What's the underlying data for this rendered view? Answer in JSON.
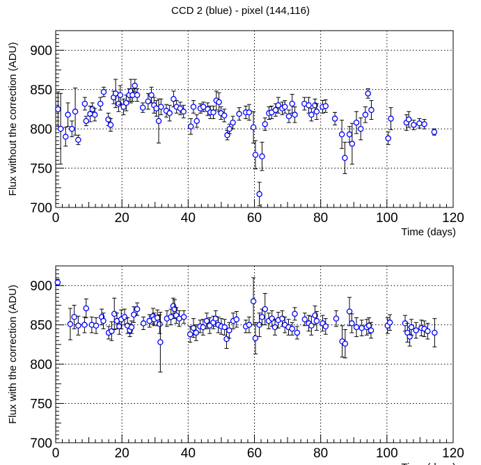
{
  "page": {
    "title": "CCD 2 (blue) -  pixel (144,116)"
  },
  "chart_data": [
    {
      "type": "scatter",
      "xlabel": "Time (days)",
      "ylabel": "Flux without the correction (ADU)",
      "xlim": [
        0,
        120
      ],
      "ylim": [
        700,
        925
      ],
      "x_ticks": [
        "0",
        "20",
        "40",
        "60",
        "80",
        "100",
        "120"
      ],
      "y_ticks": [
        "700",
        "750",
        "800",
        "850",
        "900"
      ],
      "grid": true,
      "marker": "open-circle",
      "color": "#0000ff",
      "errorbar_color": "#000000",
      "points": [
        [
          0.7,
          825,
          22
        ],
        [
          1.5,
          800,
          45
        ],
        [
          3.0,
          790,
          12
        ],
        [
          3.7,
          818,
          15
        ],
        [
          4.9,
          800,
          10
        ],
        [
          5.9,
          822,
          30
        ],
        [
          6.8,
          786,
          6
        ],
        [
          8.8,
          832,
          8
        ],
        [
          9.2,
          810,
          6
        ],
        [
          10.4,
          819,
          10
        ],
        [
          11.1,
          825,
          8
        ],
        [
          11.8,
          818,
          8
        ],
        [
          13.5,
          832,
          8
        ],
        [
          14.5,
          847,
          6
        ],
        [
          15.9,
          812,
          8
        ],
        [
          16.6,
          805,
          8
        ],
        [
          17.5,
          840,
          8
        ],
        [
          18.1,
          845,
          18
        ],
        [
          19.0,
          832,
          10
        ],
        [
          19.5,
          843,
          12
        ],
        [
          20.5,
          828,
          10
        ],
        [
          21.3,
          833,
          10
        ],
        [
          22.2,
          843,
          8
        ],
        [
          22.7,
          848,
          15
        ],
        [
          23.2,
          843,
          8
        ],
        [
          23.9,
          855,
          8
        ],
        [
          24.6,
          843,
          8
        ],
        [
          26.3,
          827,
          6
        ],
        [
          27.9,
          835,
          10
        ],
        [
          28.9,
          843,
          10
        ],
        [
          29.7,
          830,
          10
        ],
        [
          30.4,
          826,
          10
        ],
        [
          31.1,
          810,
          28
        ],
        [
          31.8,
          828,
          10
        ],
        [
          33.4,
          823,
          8
        ],
        [
          34.4,
          820,
          10
        ],
        [
          35.6,
          838,
          10
        ],
        [
          36.5,
          828,
          8
        ],
        [
          37.6,
          826,
          8
        ],
        [
          38.6,
          822,
          8
        ],
        [
          40.8,
          803,
          10
        ],
        [
          41.6,
          828,
          8
        ],
        [
          42.6,
          810,
          8
        ],
        [
          43.7,
          826,
          6
        ],
        [
          44.6,
          828,
          6
        ],
        [
          45.9,
          825,
          8
        ],
        [
          46.7,
          821,
          8
        ],
        [
          47.6,
          821,
          8
        ],
        [
          48.5,
          836,
          12
        ],
        [
          49.3,
          834,
          12
        ],
        [
          49.9,
          820,
          8
        ],
        [
          50.9,
          817,
          8
        ],
        [
          51.8,
          792,
          6
        ],
        [
          52.5,
          800,
          6
        ],
        [
          53.5,
          808,
          8
        ],
        [
          55.4,
          819,
          8
        ],
        [
          57.4,
          821,
          8
        ],
        [
          58.4,
          821,
          10
        ],
        [
          59.7,
          802,
          20
        ],
        [
          60.3,
          767,
          18
        ],
        [
          61.5,
          717,
          15
        ],
        [
          62.3,
          765,
          18
        ],
        [
          63.2,
          806,
          8
        ],
        [
          64.4,
          820,
          8
        ],
        [
          65.2,
          821,
          8
        ],
        [
          66.4,
          824,
          8
        ],
        [
          67.2,
          830,
          10
        ],
        [
          68.4,
          826,
          8
        ],
        [
          69.2,
          828,
          8
        ],
        [
          70.4,
          816,
          8
        ],
        [
          71.4,
          832,
          12
        ],
        [
          72.2,
          818,
          10
        ],
        [
          75.1,
          832,
          8
        ],
        [
          76.4,
          830,
          10
        ],
        [
          77.2,
          818,
          8
        ],
        [
          78.3,
          830,
          8
        ],
        [
          78.8,
          822,
          10
        ],
        [
          80.6,
          828,
          8
        ],
        [
          81.5,
          829,
          8
        ],
        [
          84.3,
          813,
          8
        ],
        [
          86.4,
          793,
          18
        ],
        [
          87.3,
          763,
          20
        ],
        [
          88.7,
          793,
          10
        ],
        [
          89.5,
          781,
          26
        ],
        [
          90.8,
          808,
          14
        ],
        [
          92.1,
          800,
          14
        ],
        [
          93.5,
          818,
          10
        ],
        [
          94.3,
          845,
          6
        ],
        [
          95.3,
          824,
          12
        ],
        [
          100.4,
          788,
          8
        ],
        [
          101.2,
          813,
          14
        ],
        [
          105.9,
          808,
          10
        ],
        [
          106.6,
          812,
          10
        ],
        [
          108.1,
          805,
          6
        ],
        [
          109.8,
          807,
          6
        ],
        [
          111.3,
          806,
          6
        ],
        [
          114.3,
          796,
          4
        ]
      ]
    },
    {
      "type": "scatter",
      "xlabel": "Time (days)",
      "ylabel": "Flux with the correction (ADU)",
      "xlim": [
        0,
        120
      ],
      "ylim": [
        700,
        925
      ],
      "x_ticks": [
        "0",
        "20",
        "40",
        "60",
        "80",
        "100",
        "120"
      ],
      "y_ticks": [
        "700",
        "750",
        "800",
        "850",
        "900"
      ],
      "grid": true,
      "marker": "open-circle",
      "color": "#0000ff",
      "errorbar_color": "#000000",
      "points": [
        [
          0.6,
          904,
          4
        ],
        [
          4.4,
          851,
          20
        ],
        [
          5.6,
          860,
          15
        ],
        [
          6.8,
          849,
          12
        ],
        [
          8.7,
          850,
          10
        ],
        [
          9.2,
          871,
          12
        ],
        [
          10.9,
          850,
          10
        ],
        [
          12.2,
          849,
          10
        ],
        [
          13.9,
          860,
          10
        ],
        [
          14.4,
          855,
          10
        ],
        [
          16.0,
          840,
          8
        ],
        [
          16.9,
          842,
          12
        ],
        [
          17.7,
          864,
          20
        ],
        [
          18.5,
          855,
          10
        ],
        [
          19.2,
          848,
          10
        ],
        [
          19.8,
          857,
          12
        ],
        [
          20.8,
          860,
          10
        ],
        [
          21.7,
          849,
          10
        ],
        [
          22.4,
          843,
          8
        ],
        [
          22.9,
          847,
          8
        ],
        [
          23.6,
          863,
          10
        ],
        [
          24.6,
          870,
          8
        ],
        [
          26.5,
          852,
          8
        ],
        [
          28.3,
          855,
          8
        ],
        [
          29.4,
          861,
          10
        ],
        [
          29.7,
          857,
          8
        ],
        [
          30.7,
          859,
          10
        ],
        [
          31.4,
          851,
          12
        ],
        [
          31.6,
          828,
          38
        ],
        [
          33.6,
          858,
          10
        ],
        [
          34.8,
          860,
          10
        ],
        [
          35.5,
          874,
          10
        ],
        [
          35.9,
          870,
          12
        ],
        [
          36.4,
          862,
          10
        ],
        [
          37.3,
          858,
          10
        ],
        [
          38.7,
          860,
          8
        ],
        [
          40.6,
          838,
          10
        ],
        [
          41.6,
          846,
          12
        ],
        [
          42.4,
          840,
          10
        ],
        [
          43.6,
          848,
          8
        ],
        [
          44.5,
          847,
          10
        ],
        [
          45.6,
          855,
          10
        ],
        [
          46.5,
          849,
          10
        ],
        [
          47.6,
          853,
          8
        ],
        [
          48.3,
          858,
          10
        ],
        [
          49.1,
          850,
          10
        ],
        [
          50.0,
          848,
          10
        ],
        [
          51.0,
          847,
          10
        ],
        [
          51.6,
          832,
          12
        ],
        [
          52.4,
          843,
          10
        ],
        [
          53.6,
          855,
          10
        ],
        [
          54.6,
          857,
          10
        ],
        [
          57.4,
          848,
          8
        ],
        [
          58.4,
          850,
          10
        ],
        [
          59.7,
          880,
          30
        ],
        [
          60.3,
          833,
          20
        ],
        [
          61.5,
          850,
          15
        ],
        [
          62.3,
          860,
          10
        ],
        [
          63.2,
          870,
          20
        ],
        [
          64.3,
          855,
          10
        ],
        [
          65.3,
          858,
          10
        ],
        [
          66.2,
          847,
          10
        ],
        [
          67.2,
          856,
          10
        ],
        [
          68.4,
          858,
          10
        ],
        [
          69.2,
          850,
          10
        ],
        [
          70.3,
          847,
          10
        ],
        [
          71.4,
          845,
          8
        ],
        [
          72.2,
          864,
          8
        ],
        [
          72.9,
          840,
          8
        ],
        [
          75.2,
          857,
          8
        ],
        [
          76.4,
          852,
          10
        ],
        [
          77.2,
          849,
          12
        ],
        [
          78.3,
          862,
          12
        ],
        [
          78.8,
          855,
          12
        ],
        [
          80.6,
          852,
          10
        ],
        [
          81.5,
          848,
          10
        ],
        [
          84.7,
          858,
          10
        ],
        [
          86.5,
          829,
          20
        ],
        [
          87.4,
          826,
          18
        ],
        [
          88.7,
          867,
          18
        ],
        [
          89.4,
          852,
          12
        ],
        [
          90.8,
          847,
          12
        ],
        [
          92.4,
          846,
          10
        ],
        [
          93.9,
          847,
          10
        ],
        [
          94.6,
          849,
          10
        ],
        [
          95.2,
          843,
          10
        ],
        [
          100.2,
          849,
          10
        ],
        [
          100.9,
          853,
          10
        ],
        [
          105.5,
          852,
          10
        ],
        [
          106.2,
          840,
          12
        ],
        [
          106.9,
          835,
          12
        ],
        [
          107.4,
          847,
          10
        ],
        [
          108.8,
          843,
          10
        ],
        [
          110.4,
          846,
          10
        ],
        [
          111.3,
          845,
          10
        ],
        [
          112.3,
          842,
          10
        ],
        [
          114.4,
          840,
          18
        ]
      ]
    }
  ]
}
